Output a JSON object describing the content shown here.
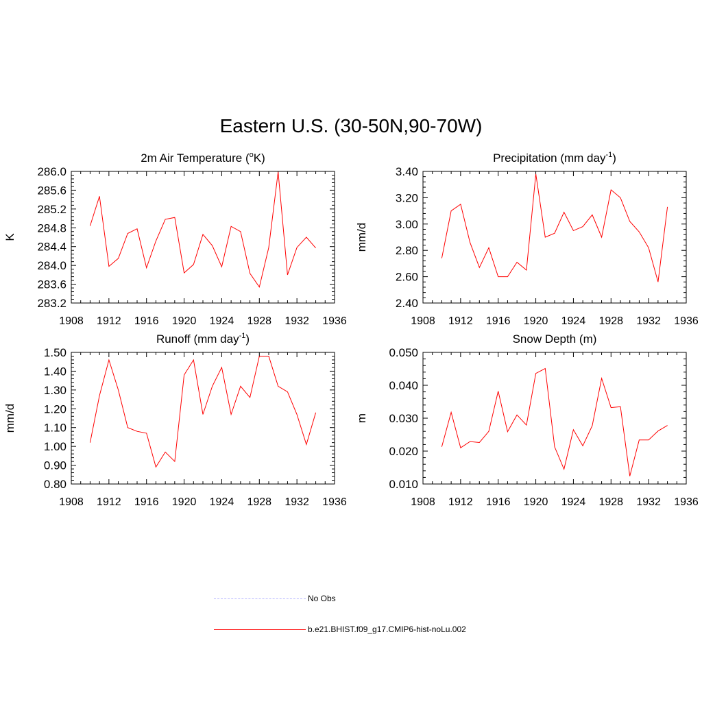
{
  "figure_title": "Eastern U.S. (30-50N,90-70W)",
  "colors": {
    "model_line": "#ff0000",
    "obs_line": "#b3b3ff",
    "axis": "#000000"
  },
  "legend": [
    {
      "label": "No Obs",
      "color": "#b3b3ff",
      "style": "dashed"
    },
    {
      "label": "b.e21.BHIST.f09_g17.CMIP6-hist-noLu.002",
      "color": "#ff0000",
      "style": "solid"
    }
  ],
  "chart_data": [
    {
      "type": "line",
      "title": "2m Air Temperature (",
      "title_sup": "o",
      "title_after": "K)",
      "ylabel": "K",
      "xlim": [
        1908,
        1936
      ],
      "ylim": [
        283.2,
        286.0
      ],
      "xticks": [
        "1908",
        "1912",
        "1916",
        "1920",
        "1924",
        "1928",
        "1932",
        "1936"
      ],
      "yticks": [
        "283.2",
        "283.6",
        "284.0",
        "284.4",
        "284.8",
        "285.2",
        "285.6",
        "286.0"
      ],
      "x": [
        1910,
        1911,
        1912,
        1913,
        1914,
        1915,
        1916,
        1917,
        1918,
        1919,
        1920,
        1921,
        1922,
        1923,
        1924,
        1925,
        1926,
        1927,
        1928,
        1929,
        1930,
        1931,
        1932,
        1933,
        1934
      ],
      "series": [
        {
          "values": [
            284.84,
            285.47,
            283.98,
            284.15,
            284.68,
            284.78,
            283.95,
            284.52,
            284.98,
            285.02,
            283.84,
            284.02,
            284.66,
            284.42,
            283.97,
            284.83,
            284.72,
            283.83,
            283.54,
            284.38,
            285.99,
            283.8,
            284.38,
            284.6,
            284.37
          ]
        }
      ]
    },
    {
      "type": "line",
      "title": "Precipitation (mm day",
      "title_sup": "-1",
      "title_after": ")",
      "ylabel": "mm/d",
      "xlim": [
        1908,
        1936
      ],
      "ylim": [
        2.4,
        3.4
      ],
      "xticks": [
        "1908",
        "1912",
        "1916",
        "1920",
        "1924",
        "1928",
        "1932",
        "1936"
      ],
      "yticks": [
        "2.40",
        "2.60",
        "2.80",
        "3.00",
        "3.20",
        "3.40"
      ],
      "x": [
        1910,
        1911,
        1912,
        1913,
        1914,
        1915,
        1916,
        1917,
        1918,
        1919,
        1920,
        1921,
        1922,
        1923,
        1924,
        1925,
        1926,
        1927,
        1928,
        1929,
        1930,
        1931,
        1932,
        1933,
        1934
      ],
      "series": [
        {
          "values": [
            2.74,
            3.1,
            3.15,
            2.86,
            2.67,
            2.82,
            2.6,
            2.6,
            2.71,
            2.65,
            3.38,
            2.9,
            2.93,
            3.09,
            2.95,
            2.98,
            3.07,
            2.9,
            3.26,
            3.2,
            3.02,
            2.94,
            2.82,
            2.56,
            3.13
          ]
        }
      ]
    },
    {
      "type": "line",
      "title": "Runoff (mm day",
      "title_sup": "-1",
      "title_after": ")",
      "ylabel": "mm/d",
      "xlim": [
        1908,
        1936
      ],
      "ylim": [
        0.8,
        1.5
      ],
      "xticks": [
        "1908",
        "1912",
        "1916",
        "1920",
        "1924",
        "1928",
        "1932",
        "1936"
      ],
      "yticks": [
        "0.80",
        "0.90",
        "1.00",
        "1.10",
        "1.20",
        "1.30",
        "1.40",
        "1.50"
      ],
      "x": [
        1910,
        1911,
        1912,
        1913,
        1914,
        1915,
        1916,
        1917,
        1918,
        1919,
        1920,
        1921,
        1922,
        1923,
        1924,
        1925,
        1926,
        1927,
        1928,
        1929,
        1930,
        1931,
        1932,
        1933,
        1934
      ],
      "series": [
        {
          "values": [
            1.02,
            1.27,
            1.46,
            1.3,
            1.1,
            1.08,
            1.07,
            0.89,
            0.97,
            0.92,
            1.38,
            1.46,
            1.17,
            1.32,
            1.42,
            1.17,
            1.32,
            1.26,
            1.48,
            1.48,
            1.32,
            1.29,
            1.17,
            1.01,
            1.18
          ]
        }
      ]
    },
    {
      "type": "line",
      "title": "Snow Depth (m)",
      "title_sup": "",
      "title_after": "",
      "ylabel": "m",
      "xlim": [
        1908,
        1936
      ],
      "ylim": [
        0.01,
        0.05
      ],
      "xticks": [
        "1908",
        "1912",
        "1916",
        "1920",
        "1924",
        "1928",
        "1932",
        "1936"
      ],
      "yticks": [
        "0.010",
        "0.020",
        "0.030",
        "0.040",
        "0.050"
      ],
      "x": [
        1910,
        1911,
        1912,
        1913,
        1914,
        1915,
        1916,
        1917,
        1918,
        1919,
        1920,
        1921,
        1922,
        1923,
        1924,
        1925,
        1926,
        1927,
        1928,
        1929,
        1930,
        1931,
        1932,
        1933,
        1934
      ],
      "series": [
        {
          "values": [
            0.0213,
            0.0318,
            0.021,
            0.0229,
            0.0226,
            0.026,
            0.0382,
            0.0259,
            0.031,
            0.0279,
            0.0436,
            0.0451,
            0.0213,
            0.0145,
            0.0265,
            0.0216,
            0.0277,
            0.0421,
            0.0332,
            0.0335,
            0.0124,
            0.0234,
            0.0234,
            0.0261,
            0.0278
          ]
        }
      ]
    }
  ]
}
